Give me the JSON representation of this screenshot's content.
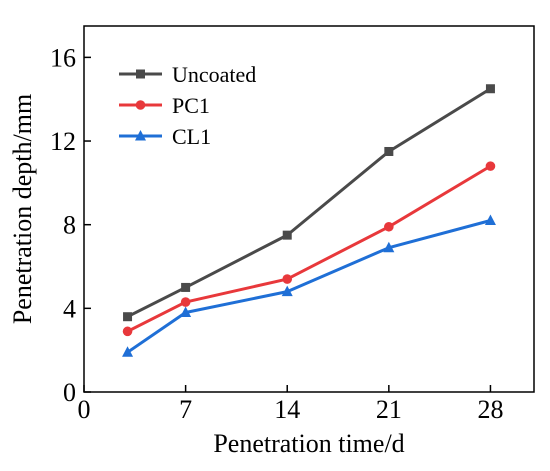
{
  "chart_data": {
    "type": "line",
    "xlabel": "Penetration time/d",
    "ylabel": "Penetration depth/mm",
    "xlim": [
      0,
      31
    ],
    "ylim": [
      0,
      17.5
    ],
    "xticks": [
      "0",
      "7",
      "14",
      "21",
      "28"
    ],
    "yticks": [
      "0",
      "4",
      "8",
      "12",
      "16"
    ],
    "x": [
      3,
      7,
      14,
      21,
      28
    ],
    "grid": false,
    "legend_position": "top-left",
    "series": [
      {
        "name": "Uncoated",
        "marker": "square",
        "color": "#4a4a4a",
        "values": [
          3.6,
          5.0,
          7.5,
          11.5,
          14.5
        ]
      },
      {
        "name": "PC1",
        "marker": "circle",
        "color": "#e8383b",
        "values": [
          2.9,
          4.3,
          5.4,
          7.9,
          10.8
        ]
      },
      {
        "name": "CL1",
        "marker": "triangle",
        "color": "#1f6fd6",
        "values": [
          1.9,
          3.8,
          4.8,
          6.9,
          8.2
        ]
      }
    ]
  }
}
